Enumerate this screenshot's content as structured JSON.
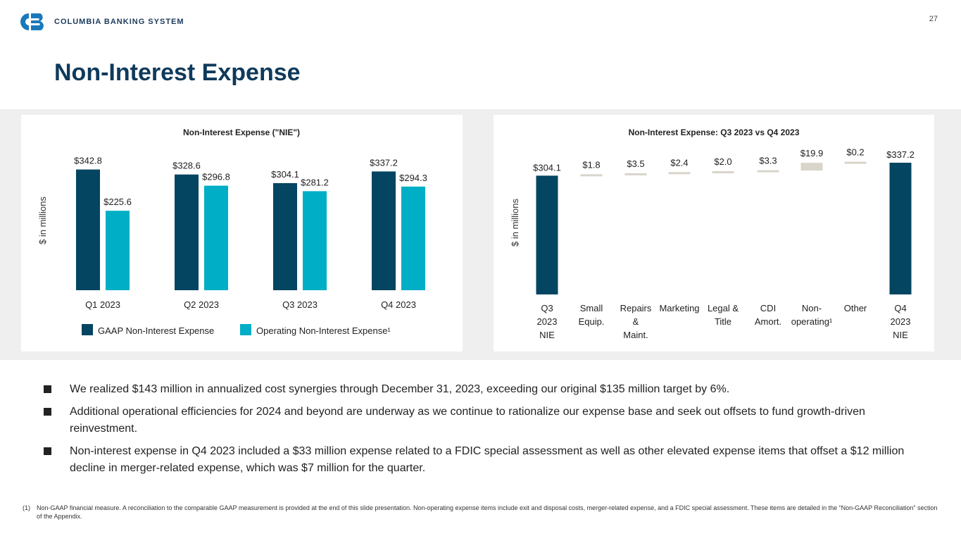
{
  "header": {
    "company_name": "COLUMBIA BANKING SYSTEM",
    "page_number": "27",
    "title": "Non-Interest Expense"
  },
  "colors": {
    "navy": "#044561",
    "teal": "#00aec6",
    "beige": "#d9d5cb",
    "logo": "#1a79bb"
  },
  "chart_data": [
    {
      "type": "bar",
      "title": "Non-Interest Expense (\"NIE\")",
      "ylabel": "$ in millions",
      "xlabel": "",
      "ylim": [
        0,
        360
      ],
      "categories": [
        "Q1 2023",
        "Q2 2023",
        "Q3 2023",
        "Q4 2023"
      ],
      "series": [
        {
          "name": "GAAP Non-Interest Expense",
          "values": [
            342.8,
            328.6,
            304.1,
            337.2
          ],
          "labels": [
            "$342.8",
            "$328.6",
            "$304.1",
            "$337.2"
          ]
        },
        {
          "name": "Operating Non-Interest Expense¹",
          "values": [
            225.6,
            296.8,
            281.2,
            294.3
          ],
          "labels": [
            "$225.6",
            "$296.8",
            "$281.2",
            "$294.3"
          ]
        }
      ],
      "legend": "bottom",
      "grid": false
    },
    {
      "type": "bar",
      "subtype": "waterfall",
      "title": "Non-Interest Expense: Q3 2023 vs Q4 2023",
      "ylabel": "$ in millions",
      "xlabel": "",
      "ylim": [
        0,
        400
      ],
      "categories": [
        [
          "Q3",
          "2023",
          "NIE"
        ],
        [
          "Small",
          "Equip."
        ],
        [
          "Repairs",
          "&",
          "Maint."
        ],
        [
          "Marketing"
        ],
        [
          "Legal &",
          "Title"
        ],
        [
          "CDI",
          "Amort."
        ],
        [
          "Non-",
          "operating¹"
        ],
        [
          "Other"
        ],
        [
          "Q4",
          "2023",
          "NIE"
        ]
      ],
      "values": [
        304.1,
        1.8,
        3.5,
        2.4,
        2.0,
        3.3,
        19.9,
        0.2,
        337.2
      ],
      "labels": [
        "$304.1",
        "$1.8",
        "$3.5",
        "$2.4",
        "$2.0",
        "$3.3",
        "$19.9",
        "$0.2",
        "$337.2"
      ],
      "kinds": [
        "total",
        "change",
        "change",
        "change",
        "change",
        "change",
        "change",
        "change",
        "total"
      ],
      "grid": false
    }
  ],
  "bullets": [
    "We realized $143 million in annualized cost synergies through December 31, 2023, exceeding our original $135 million target by 6%.",
    "Additional operational efficiencies for 2024 and beyond are underway as we continue to rationalize our expense base and seek out offsets to fund growth-driven reinvestment.",
    "Non-interest expense in Q4 2023 included a $33 million expense related to a FDIC special assessment as well as other elevated expense items that offset a $12 million decline in merger-related expense, which was $7 million for the quarter."
  ],
  "footnote": {
    "mark": "(1)",
    "text": "Non-GAAP financial measure. A reconciliation to the comparable GAAP measurement is provided at the end of this slide presentation. Non-operating expense items include exit and disposal costs, merger-related expense, and a FDIC special assessment. These items are detailed in the “Non-GAAP Reconciliation” section of the Appendix."
  }
}
